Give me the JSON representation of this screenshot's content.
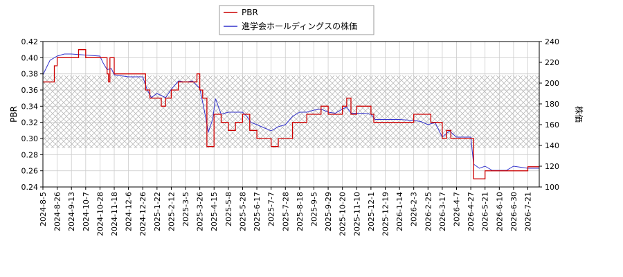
{
  "chart_data": {
    "type": "line",
    "x_dates": [
      "2024-8-5",
      "2024-8-26",
      "2024-9-13",
      "2024-10-7",
      "2024-10-28",
      "2024-11-18",
      "2024-12-6",
      "2024-12-26",
      "2025-1-22",
      "2025-2-12",
      "2025-3-5",
      "2025-3-26",
      "2025-4-15",
      "2025-5-8",
      "2025-5-28",
      "2025-6-17",
      "2025-7-7",
      "2025-7-28",
      "2025-8-18",
      "2025-9-5",
      "2025-9-29",
      "2025-10-20",
      "2025-11-10",
      "2025-12-1",
      "2025-12-19",
      "2026-1-14",
      "2026-2-3",
      "2026-2-25",
      "2026-3-17",
      "2026-4-7",
      "2026-4-27",
      "2026-5-21",
      "2026-6-10",
      "2026-6-30",
      "2026-7-21"
    ],
    "left_axis": {
      "label": "PBR",
      "ylim": [
        0.24,
        0.42
      ],
      "ticks": [
        "0.24",
        "0.26",
        "0.28",
        "0.30",
        "0.32",
        "0.34",
        "0.36",
        "0.38",
        "0.40",
        "0.42"
      ]
    },
    "right_axis": {
      "label": "株価",
      "ylim": [
        100,
        240
      ],
      "ticks": [
        "100",
        "120",
        "140",
        "160",
        "180",
        "200",
        "220",
        "240"
      ]
    },
    "band": {
      "axis": "left",
      "range": [
        0.288,
        0.378
      ]
    },
    "legend": {
      "position": "top-center",
      "entries": [
        "PBR",
        "進学会ホールディングスの株価"
      ]
    },
    "series": [
      {
        "name": "PBR",
        "axis": "left",
        "color": "#cc0000",
        "points": [
          [
            0.0,
            0.37
          ],
          [
            0.8,
            0.39
          ],
          [
            1.0,
            0.4
          ],
          [
            2.5,
            0.41
          ],
          [
            3.0,
            0.4
          ],
          [
            4.0,
            0.4
          ],
          [
            4.5,
            0.38
          ],
          [
            4.6,
            0.37
          ],
          [
            4.7,
            0.4
          ],
          [
            5.0,
            0.38
          ],
          [
            6.0,
            0.38
          ],
          [
            7.0,
            0.38
          ],
          [
            7.2,
            0.36
          ],
          [
            7.5,
            0.35
          ],
          [
            8.0,
            0.35
          ],
          [
            8.3,
            0.34
          ],
          [
            8.6,
            0.35
          ],
          [
            9.0,
            0.36
          ],
          [
            9.5,
            0.37
          ],
          [
            10.0,
            0.37
          ],
          [
            10.8,
            0.38
          ],
          [
            11.0,
            0.36
          ],
          [
            11.2,
            0.35
          ],
          [
            11.5,
            0.29
          ],
          [
            11.8,
            0.29
          ],
          [
            12.0,
            0.33
          ],
          [
            12.5,
            0.32
          ],
          [
            13.0,
            0.31
          ],
          [
            13.5,
            0.32
          ],
          [
            14.0,
            0.33
          ],
          [
            14.5,
            0.31
          ],
          [
            15.0,
            0.3
          ],
          [
            15.5,
            0.3
          ],
          [
            16.0,
            0.29
          ],
          [
            16.5,
            0.3
          ],
          [
            17.0,
            0.3
          ],
          [
            17.5,
            0.32
          ],
          [
            18.0,
            0.32
          ],
          [
            18.5,
            0.33
          ],
          [
            19.0,
            0.33
          ],
          [
            19.5,
            0.34
          ],
          [
            20.0,
            0.33
          ],
          [
            21.0,
            0.34
          ],
          [
            21.3,
            0.35
          ],
          [
            21.6,
            0.33
          ],
          [
            22.0,
            0.34
          ],
          [
            23.0,
            0.33
          ],
          [
            23.2,
            0.32
          ],
          [
            24.0,
            0.32
          ],
          [
            25.0,
            0.32
          ],
          [
            26.0,
            0.33
          ],
          [
            27.0,
            0.33
          ],
          [
            27.2,
            0.32
          ],
          [
            28.0,
            0.3
          ],
          [
            28.3,
            0.31
          ],
          [
            28.6,
            0.3
          ],
          [
            29.0,
            0.3
          ],
          [
            30.0,
            0.3
          ],
          [
            30.2,
            0.25
          ],
          [
            31.0,
            0.26
          ],
          [
            32.0,
            0.26
          ],
          [
            33.0,
            0.26
          ],
          [
            34.0,
            0.265
          ],
          [
            34.8,
            0.265
          ]
        ]
      },
      {
        "name": "進学会ホールディングスの株価",
        "axis": "right",
        "color": "#3333cc",
        "points": [
          [
            0.0,
            208
          ],
          [
            0.5,
            222
          ],
          [
            1.0,
            226
          ],
          [
            1.5,
            228
          ],
          [
            2.0,
            228
          ],
          [
            3.0,
            227
          ],
          [
            4.0,
            226
          ],
          [
            4.2,
            220
          ],
          [
            4.5,
            213
          ],
          [
            4.8,
            214
          ],
          [
            5.0,
            208
          ],
          [
            6.0,
            206
          ],
          [
            7.0,
            206
          ],
          [
            7.3,
            194
          ],
          [
            7.6,
            186
          ],
          [
            8.0,
            190
          ],
          [
            8.3,
            188
          ],
          [
            8.6,
            186
          ],
          [
            9.0,
            194
          ],
          [
            9.5,
            202
          ],
          [
            10.0,
            201
          ],
          [
            10.5,
            202
          ],
          [
            11.0,
            195
          ],
          [
            11.3,
            175
          ],
          [
            11.6,
            153
          ],
          [
            11.9,
            165
          ],
          [
            12.1,
            185
          ],
          [
            12.5,
            170
          ],
          [
            13.0,
            172
          ],
          [
            13.5,
            172
          ],
          [
            14.0,
            172
          ],
          [
            14.3,
            168
          ],
          [
            14.6,
            162
          ],
          [
            15.0,
            160
          ],
          [
            15.5,
            157
          ],
          [
            16.0,
            154
          ],
          [
            16.5,
            158
          ],
          [
            17.0,
            160
          ],
          [
            17.5,
            168
          ],
          [
            18.0,
            172
          ],
          [
            18.5,
            172
          ],
          [
            19.0,
            174
          ],
          [
            19.5,
            175
          ],
          [
            20.0,
            172
          ],
          [
            20.5,
            171
          ],
          [
            21.0,
            175
          ],
          [
            21.3,
            177
          ],
          [
            21.6,
            171
          ],
          [
            22.0,
            171
          ],
          [
            22.5,
            171
          ],
          [
            23.0,
            170
          ],
          [
            23.3,
            165
          ],
          [
            24.0,
            165
          ],
          [
            25.0,
            165
          ],
          [
            26.0,
            164
          ],
          [
            26.5,
            163
          ],
          [
            27.0,
            160
          ],
          [
            27.5,
            162
          ],
          [
            28.0,
            148
          ],
          [
            28.5,
            154
          ],
          [
            29.0,
            148
          ],
          [
            29.5,
            148
          ],
          [
            30.0,
            148
          ],
          [
            30.2,
            122
          ],
          [
            30.6,
            118
          ],
          [
            31.0,
            120
          ],
          [
            31.5,
            116
          ],
          [
            32.0,
            116
          ],
          [
            32.5,
            116
          ],
          [
            33.0,
            120
          ],
          [
            34.0,
            118
          ],
          [
            34.8,
            118
          ]
        ]
      }
    ]
  }
}
